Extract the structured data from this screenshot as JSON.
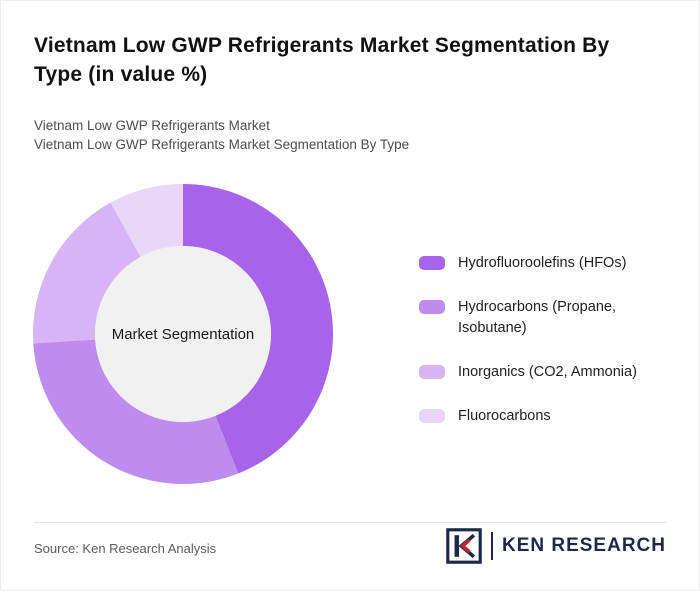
{
  "header": {
    "title": "Vietnam Low GWP Refrigerants Market Segmentation By Type (in value %)",
    "subtitle1": "Vietnam Low GWP Refrigerants Market",
    "subtitle2": "Vietnam Low GWP Refrigerants Market Segmentation By Type"
  },
  "chart_data": {
    "type": "pie",
    "variant": "donut",
    "title": "Vietnam Low GWP Refrigerants Market Segmentation By Type (in value %)",
    "center_label": "Market Segmentation",
    "legend_position": "right",
    "center_fill": "#f1f1f2",
    "segments": [
      {
        "label": "Hydrofluoroolefins (HFOs)",
        "value": 44,
        "color": "#a763e9"
      },
      {
        "label": "Hydrocarbons (Propane, Isobutane)",
        "value": 30,
        "color": "#bd8cee"
      },
      {
        "label": "Inorganics (CO2, Ammonia)",
        "value": 18,
        "color": "#d8b3f5"
      },
      {
        "label": "Fluorocarbons",
        "value": 8,
        "color": "#ead6f9"
      }
    ]
  },
  "footer": {
    "source": "Source: Ken Research Analysis",
    "logo_text": "KEN RESEARCH"
  }
}
